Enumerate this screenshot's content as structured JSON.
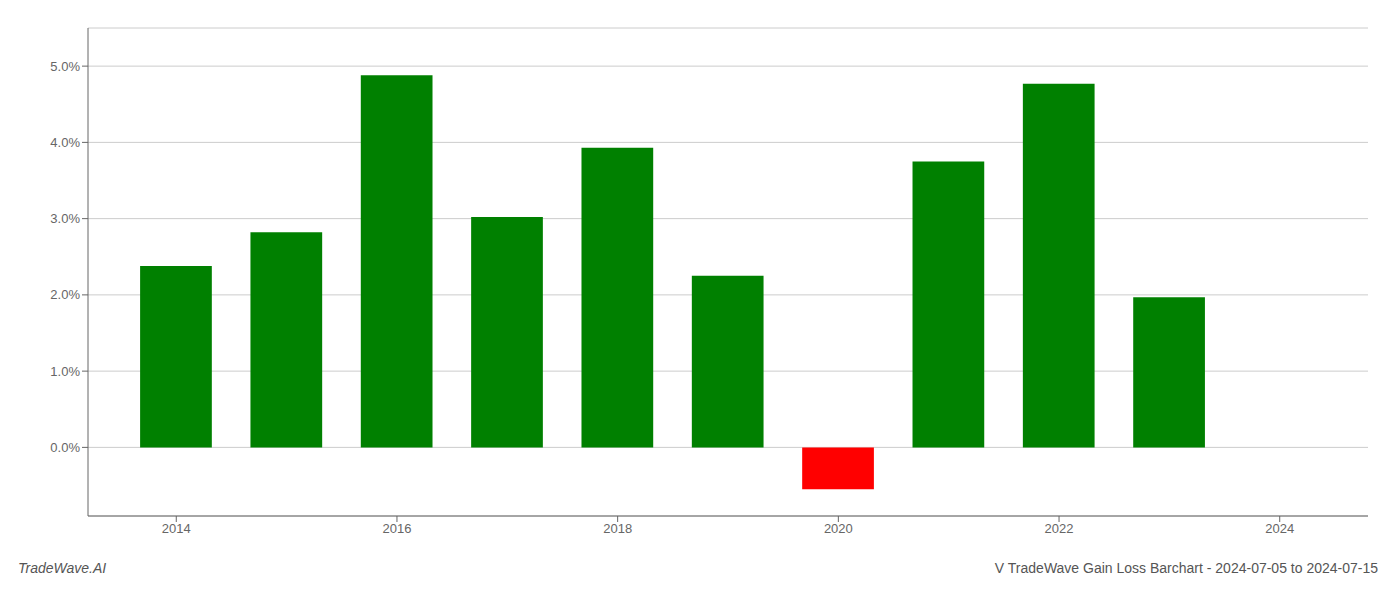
{
  "chart_data": {
    "type": "bar",
    "title": "V TradeWave Gain Loss Barchart - 2024-07-05 to 2024-07-15",
    "annotations": [
      "TradeWave.AI"
    ],
    "x": [
      2014,
      2015,
      2016,
      2017,
      2018,
      2019,
      2020,
      2021,
      2022,
      2023
    ],
    "values": [
      0.0238,
      0.0282,
      0.0488,
      0.0302,
      0.0393,
      0.0225,
      -0.0055,
      0.0375,
      0.0477,
      0.0197
    ],
    "colors": [
      "#008000",
      "#008000",
      "#008000",
      "#008000",
      "#008000",
      "#008000",
      "#ff0000",
      "#008000",
      "#008000",
      "#008000"
    ],
    "xlim": [
      2013.2,
      2024.8
    ],
    "xticks": [
      2014,
      2016,
      2018,
      2020,
      2022,
      2024
    ],
    "ylim": [
      -0.009,
      0.055
    ],
    "yticks": [
      {
        "value": 0.0,
        "label": "0.0%"
      },
      {
        "value": 0.01,
        "label": "1.0%"
      },
      {
        "value": 0.02,
        "label": "2.0%"
      },
      {
        "value": 0.03,
        "label": "3.0%"
      },
      {
        "value": 0.04,
        "label": "4.0%"
      },
      {
        "value": 0.05,
        "label": "5.0%"
      }
    ],
    "grid": true
  }
}
